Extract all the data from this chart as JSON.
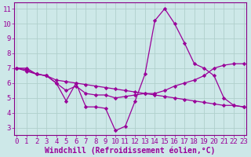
{
  "background_color": "#cde8e8",
  "grid_color": "#b0d0cc",
  "line_color": "#990099",
  "spine_color": "#880088",
  "xlim_min": -0.3,
  "xlim_max": 23.3,
  "ylim_min": 2.5,
  "ylim_max": 11.4,
  "yticks": [
    3,
    4,
    5,
    6,
    7,
    8,
    9,
    10,
    11
  ],
  "xticks": [
    0,
    1,
    2,
    3,
    4,
    5,
    6,
    7,
    8,
    9,
    10,
    11,
    12,
    13,
    14,
    15,
    16,
    17,
    18,
    19,
    20,
    21,
    22,
    23
  ],
  "xlabel": "Windchill (Refroidissement éolien,°C)",
  "xlabel_fontsize": 7.0,
  "tick_fontsize": 6.5,
  "series1_x": [
    0,
    1,
    2,
    3,
    4,
    5,
    6,
    7,
    8,
    9,
    10,
    11,
    12,
    13,
    14,
    15,
    16,
    17,
    18,
    19,
    20,
    21,
    22,
    23
  ],
  "series1_y": [
    7.0,
    7.0,
    6.6,
    6.5,
    6.0,
    4.8,
    6.0,
    4.4,
    4.4,
    4.3,
    2.8,
    3.1,
    4.8,
    6.6,
    10.2,
    11.0,
    10.0,
    8.7,
    7.3,
    7.0,
    6.5,
    5.0,
    4.5,
    4.4
  ],
  "series2_x": [
    0,
    1,
    2,
    3,
    4,
    5,
    6,
    7,
    8,
    9,
    10,
    11,
    12,
    13,
    14,
    15,
    16,
    17,
    18,
    19,
    20,
    21,
    22,
    23
  ],
  "series2_y": [
    7.0,
    6.8,
    6.6,
    6.5,
    6.2,
    6.1,
    6.0,
    5.9,
    5.8,
    5.7,
    5.6,
    5.5,
    5.4,
    5.3,
    5.2,
    5.1,
    5.0,
    4.9,
    4.8,
    4.7,
    4.6,
    4.5,
    4.5,
    4.4
  ],
  "series3_x": [
    0,
    1,
    2,
    3,
    4,
    5,
    6,
    7,
    8,
    9,
    10,
    11,
    12,
    13,
    14,
    15,
    16,
    17,
    18,
    19,
    20,
    21,
    22,
    23
  ],
  "series3_y": [
    7.0,
    6.9,
    6.6,
    6.5,
    6.0,
    5.5,
    5.8,
    5.3,
    5.2,
    5.2,
    5.0,
    5.1,
    5.2,
    5.3,
    5.3,
    5.5,
    5.8,
    6.0,
    6.2,
    6.5,
    7.0,
    7.2,
    7.3,
    7.3
  ]
}
